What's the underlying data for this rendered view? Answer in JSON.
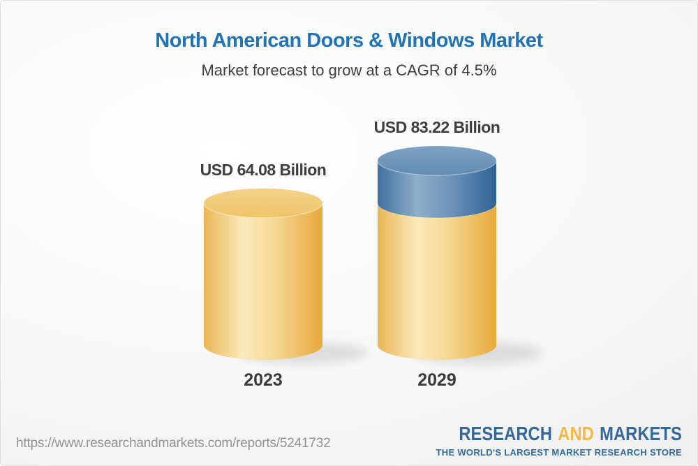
{
  "chart_data": {
    "type": "bar",
    "variant": "3d-cylinder",
    "title": "North American Doors & Windows Market",
    "subtitle": "Market forecast to grow at a CAGR of 4.5%",
    "cagr": "4.5%",
    "unit": "USD Billion",
    "categories": [
      "2023",
      "2029"
    ],
    "values": [
      64.08,
      83.22
    ],
    "value_labels": [
      "USD 64.08 Billion",
      "USD 83.22 Billion"
    ],
    "bars": [
      {
        "category": "2023",
        "value": 64.08,
        "segments": [
          {
            "value": 64.08,
            "color_key": "gold"
          }
        ]
      },
      {
        "category": "2029",
        "value": 83.22,
        "segments": [
          {
            "value": 64.08,
            "color_key": "gold"
          },
          {
            "value": 19.14,
            "color_key": "blue"
          }
        ]
      }
    ],
    "legend": "none",
    "grid": false,
    "axes": "none"
  },
  "colors": {
    "title_blue": "#2173B4",
    "text_dark": "#3E3E3E",
    "gold_highlight": "#FBE9BC",
    "gold_edge": "#E7A93C",
    "blue_highlight": "#8EAEC9",
    "blue_edge": "#2E6295",
    "url_gray": "#929292",
    "logo_blue": "#36699B",
    "logo_gold": "#F2B844",
    "background_edge": "#EBEBEB"
  },
  "footer": {
    "source_url": "https://www.researchandmarkets.com/reports/5241732",
    "logo": {
      "research": "RESEARCH",
      "and": "AND",
      "markets": "MARKETS",
      "tagline": "THE WORLD'S LARGEST MARKET RESEARCH STORE"
    }
  }
}
